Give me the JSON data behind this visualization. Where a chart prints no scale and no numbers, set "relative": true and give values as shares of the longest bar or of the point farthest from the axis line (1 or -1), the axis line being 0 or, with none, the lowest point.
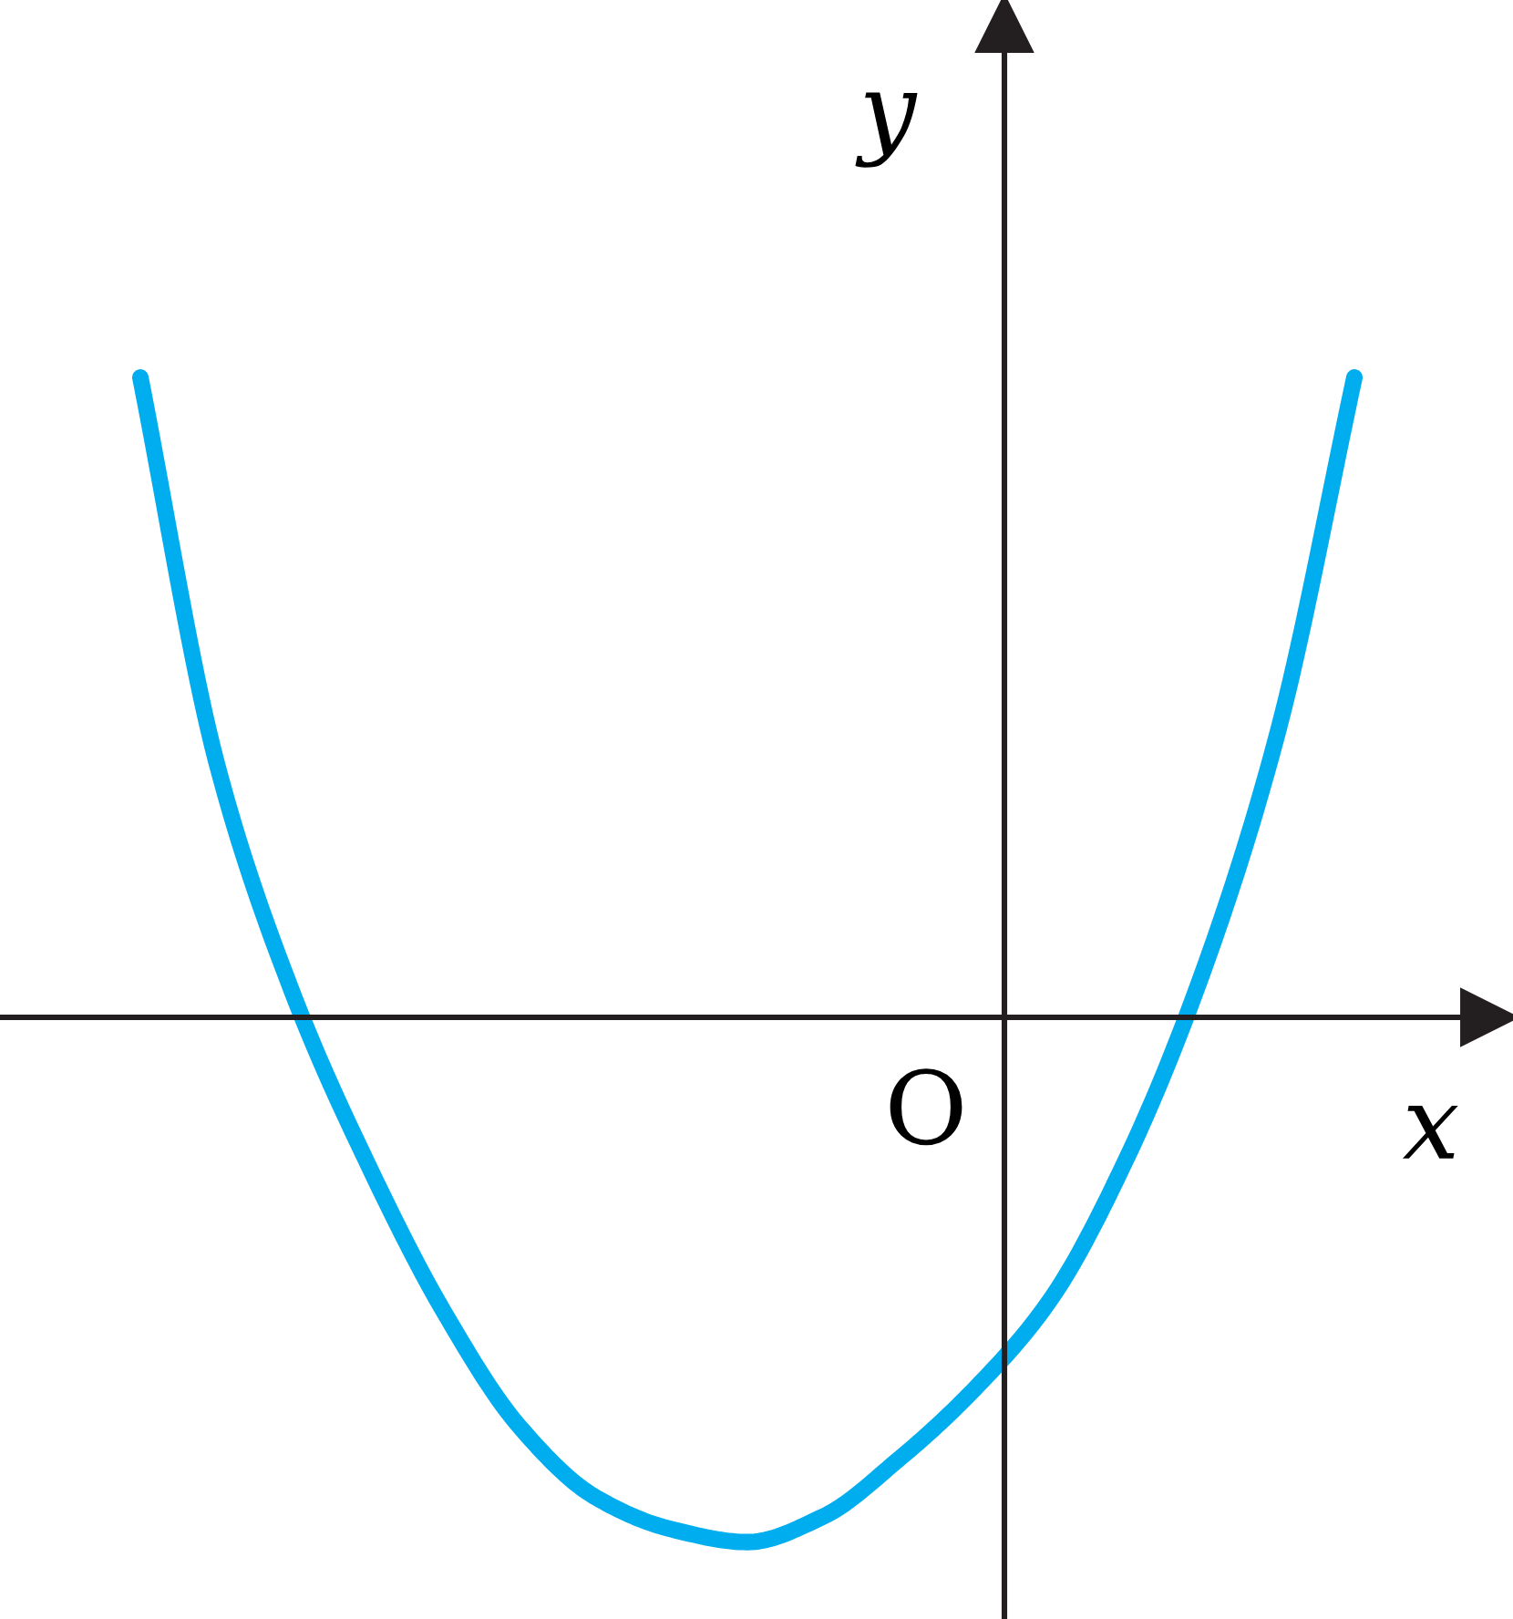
{
  "chart_data": {
    "type": "line",
    "xlabel": "x",
    "ylabel": "y",
    "annotations": [
      "O"
    ],
    "relative": true,
    "categories": [
      null,
      null,
      null,
      null,
      null,
      null,
      null,
      null,
      null,
      null,
      null,
      null,
      null,
      null,
      null,
      null,
      null
    ],
    "series": [
      {
        "color": "#00aeef",
        "values": [
          1.0,
          0.4,
          0.04,
          -0.23,
          -0.46,
          -0.64,
          -0.75,
          -0.8,
          -0.82,
          -0.78,
          -0.69,
          -0.58,
          -0.44,
          -0.22,
          0.07,
          0.45,
          1.0
        ]
      }
    ]
  }
}
